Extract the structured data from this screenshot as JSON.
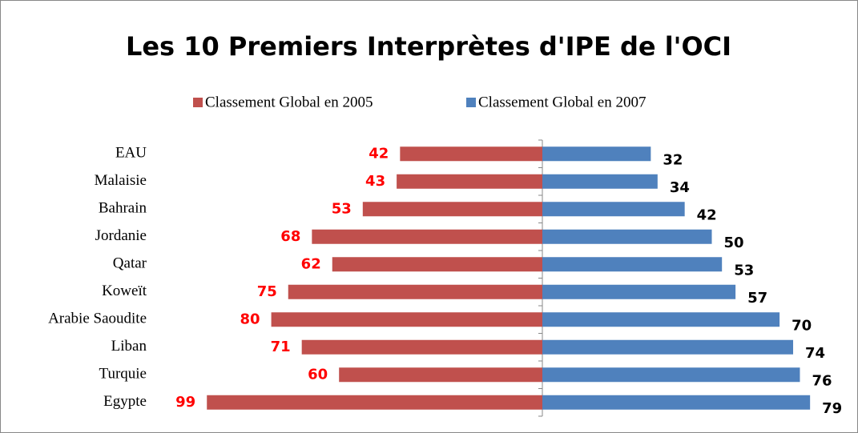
{
  "chart_data": {
    "type": "butterfly_bar",
    "title": "Les 10 Premiers Interprètes d'IPE de l'OCI",
    "categories": [
      "EAU",
      "Malaisie",
      "Bahrain",
      "Jordanie",
      "Qatar",
      "Koweït",
      "Arabie Saoudite",
      "Liban",
      "Turquie",
      "Egypte"
    ],
    "series": [
      {
        "name": "Classement Global en 2005",
        "color": "#c0504d",
        "label_color": "#ff0000",
        "side": "left",
        "values": [
          42,
          43,
          53,
          68,
          62,
          75,
          80,
          71,
          60,
          99
        ]
      },
      {
        "name": "Classement Global en 2007",
        "color": "#4f81bd",
        "label_color": "#000000",
        "side": "right",
        "values": [
          32,
          34,
          42,
          50,
          53,
          57,
          70,
          74,
          76,
          79
        ]
      }
    ],
    "xlim": [
      0,
      100
    ],
    "legend": "top"
  }
}
